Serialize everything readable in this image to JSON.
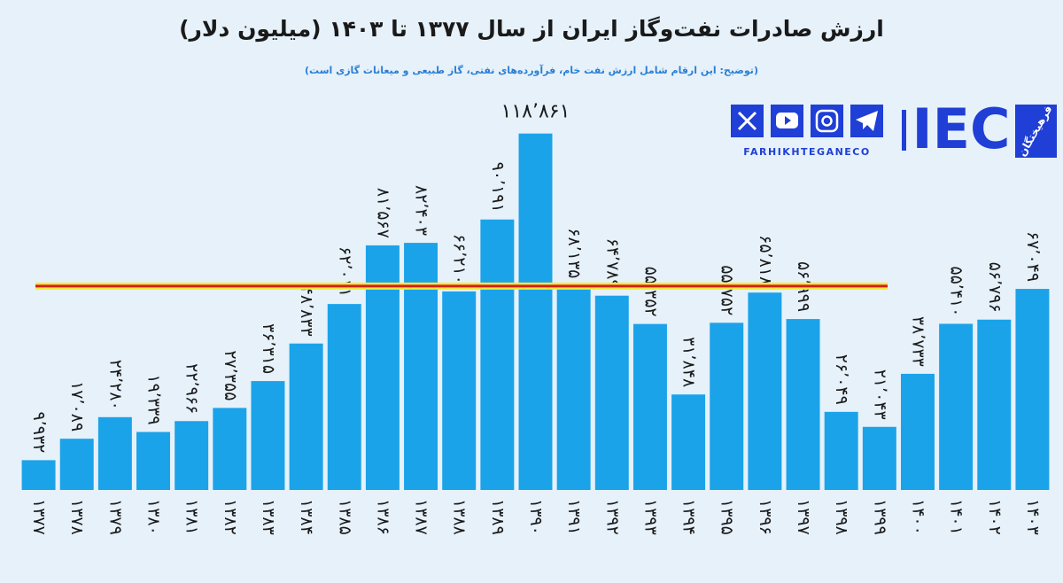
{
  "chart_data": {
    "type": "bar",
    "title": "ارزش صادرات نفت‌وگاز ایران از سال ۱۳۷۷ تا ۱۴۰۳ (میلیون دلار)",
    "subtitle": "(توضیح: این ارقام شامل ارزش نفت خام، فرآورده‌های نفتی، گاز طبیعی و میعانات گازی است)",
    "categories": [
      "۱۳۷۷",
      "۱۳۷۸",
      "۱۳۷۹",
      "۱۳۸۰",
      "۱۳۸۱",
      "۱۳۸۲",
      "۱۳۸۳",
      "۱۳۸۴",
      "۱۳۸۵",
      "۱۳۸۶",
      "۱۳۸۷",
      "۱۳۸۸",
      "۱۳۸۹",
      "۱۳۹۰",
      "۱۳۹۱",
      "۱۳۹۲",
      "۱۳۹۳",
      "۱۳۹۴",
      "۱۳۹۵",
      "۱۳۹۶",
      "۱۳۹۷",
      "۱۳۹۸",
      "۱۳۹۹",
      "۱۴۰۰",
      "۱۴۰۱",
      "۱۴۰۲",
      "۱۴۰۳"
    ],
    "values": [
      9932,
      17089,
      24280,
      19339,
      22966,
      27355,
      36315,
      48833,
      62011,
      81567,
      82403,
      66210,
      90191,
      118861,
      68135,
      64789,
      55352,
      31848,
      55752,
      65818,
      56999,
      26049,
      21043,
      38733,
      55410,
      56796,
      67049
    ],
    "value_labels": [
      "۹٬۹۳۲",
      "۱۷٬۰۸۹",
      "۲۴٬۲۸۰",
      "۱۹٬۳۳۹",
      "۲۲٬۹۶۶",
      "۲۷٬۳۵۵",
      "۳۶٬۳۱۵",
      "۴۸٬۸۳۳",
      "۶۲٬۰۱۱",
      "۸۱٬۵۶۷",
      "۸۲٬۴۰۳",
      "۶۶٬۲۱۰",
      "۹۰٬۱۹۱",
      "۱۱۸٬۸۶۱",
      "۶۸٬۱۳۵",
      "۶۴٬۷۸۹",
      "۵۵٬۳۵۲",
      "۳۱٬۸۴۸",
      "۵۵٬۷۵۲",
      "۶۵٬۸۱۸",
      "۵۶٬۹۹۹",
      "۲۶٬۰۴۹",
      "۲۱٬۰۴۳",
      "۳۸٬۷۳۳",
      "۵۵٬۴۱۰",
      "۵۶٬۷۹۶",
      "۶۷٬۰۴۹"
    ],
    "color": "#1ba3ea",
    "ylim": [
      0,
      130000
    ],
    "reference_line": {
      "value": 68000,
      "color": "#d0201c"
    }
  },
  "logo": {
    "brand": "IEC",
    "name": "فرهیختگان",
    "site": "FARHIKHTEGANECO"
  }
}
